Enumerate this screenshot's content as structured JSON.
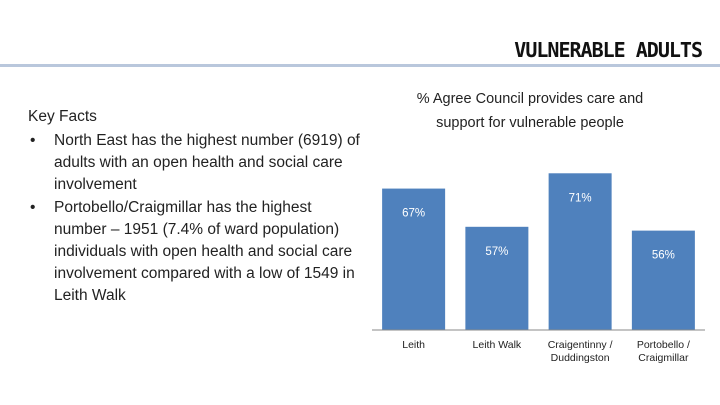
{
  "header": {
    "title": "VULNERABLE ADULTS"
  },
  "key_facts": {
    "heading": "Key Facts",
    "items": [
      "North East has the highest number (6919) of adults with an open health and social care involvement",
      "Portobello/Craigmillar has the highest number – 1951 (7.4% of ward population) individuals with open health and social care involvement compared with a low of 1549 in Leith Walk"
    ],
    "bullet": "•"
  },
  "chart_data": {
    "type": "bar",
    "title_lines": [
      "% Agree Council provides care and",
      "support for vulnerable people"
    ],
    "categories": [
      [
        "Leith"
      ],
      [
        "Leith Walk"
      ],
      [
        "Craigentinny /",
        "Duddingston"
      ],
      [
        "Portobello /",
        "Craigmillar"
      ]
    ],
    "values": [
      67,
      57,
      71,
      56
    ],
    "value_labels": [
      "67%",
      "57%",
      "71%",
      "56%"
    ],
    "ylim": [
      30,
      75
    ],
    "bar_color": "#4f81bd",
    "grid": false,
    "legend": "none"
  }
}
